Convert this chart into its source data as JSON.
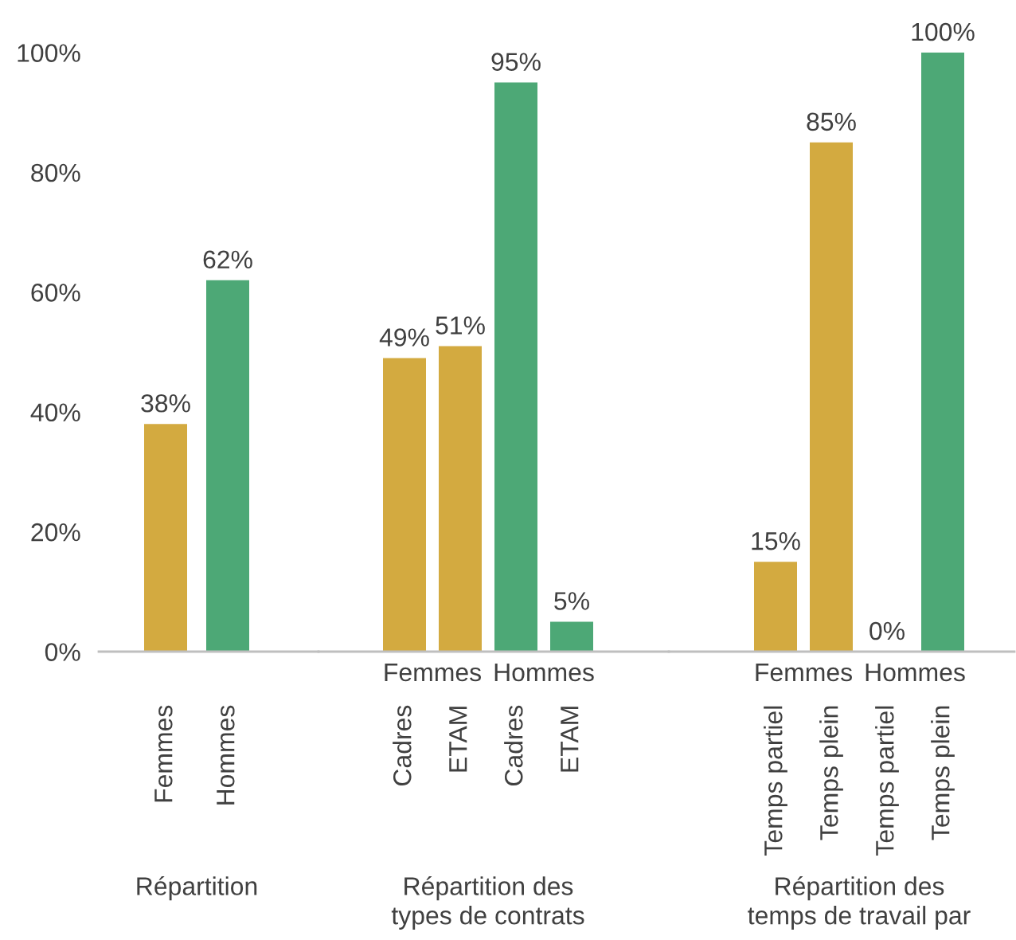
{
  "chart_data": [
    {
      "type": "bar",
      "categories": [
        "Femmes",
        "Hommes"
      ],
      "values": [
        38,
        62
      ],
      "colors": [
        "#d3aa40",
        "#4da876"
      ],
      "value_labels": [
        "38%",
        "62%"
      ],
      "xlabel": "Répartition",
      "ylim": [
        0,
        100
      ],
      "yticks": [
        {
          "value": 0,
          "label": "0%"
        },
        {
          "value": 20,
          "label": "20%"
        },
        {
          "value": 40,
          "label": "40%"
        },
        {
          "value": 60,
          "label": "60%"
        },
        {
          "value": 80,
          "label": "80%"
        },
        {
          "value": 100,
          "label": "100%"
        }
      ]
    },
    {
      "type": "bar",
      "categories": [
        "Cadres",
        "ETAM",
        "Cadres",
        "ETAM"
      ],
      "series": [
        {
          "name": "Femmes",
          "color": "#d3aa40",
          "values": [
            49,
            51,
            null,
            null
          ],
          "value_labels": [
            "49%",
            "51%",
            null,
            null
          ]
        },
        {
          "name": "Hommes",
          "color": "#4da876",
          "values": [
            null,
            null,
            95,
            5
          ],
          "value_labels": [
            null,
            null,
            "95%",
            "5%"
          ]
        }
      ],
      "xlabel": "Répartition des\ntypes de contrats",
      "ylim": [
        0,
        100
      ],
      "tick_labels": "x"
    },
    {
      "type": "bar",
      "categories": [
        "Temps partiel",
        "Temps plein",
        "Temps partiel",
        "Temps plein"
      ],
      "series": [
        {
          "name": "Femmes",
          "color": "#d3aa40",
          "values": [
            15,
            85,
            null,
            null
          ],
          "value_labels": [
            "15%",
            "85%",
            null,
            null
          ]
        },
        {
          "name": "Hommes",
          "color": "#4da876",
          "values": [
            null,
            null,
            0,
            100
          ],
          "value_labels": [
            null,
            null,
            "0%",
            "100%"
          ]
        }
      ],
      "xlabel": "Répartition des\ntemps de travail par",
      "ylim": [
        0,
        100
      ],
      "tick_labels": "x"
    }
  ]
}
